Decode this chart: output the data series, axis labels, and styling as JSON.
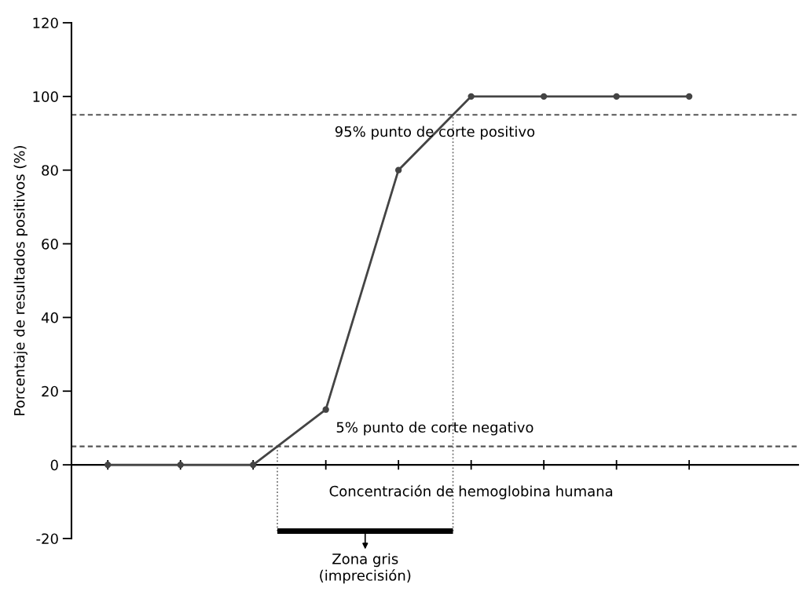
{
  "chart_data": {
    "type": "line",
    "ylabel": "Porcentaje de resultados positivos (%)",
    "xlabel": "Concentración de hemoglobina humana",
    "categories": [
      null,
      null,
      null,
      null,
      null,
      null,
      null,
      null,
      null
    ],
    "series": [
      {
        "color": "#444444",
        "values": [
          0,
          0,
          0,
          15,
          80,
          100,
          100,
          100,
          100
        ]
      }
    ],
    "marker": "circle",
    "line_style": "solid",
    "ylim": [
      -20,
      120
    ],
    "yticks": [
      -20,
      0,
      20,
      40,
      60,
      80,
      100,
      120
    ],
    "tick_labels": "y",
    "legend": false,
    "ref_lines": [
      {
        "axis": "y",
        "value": 95,
        "label": "95% punto de corte positivo",
        "color": "#555555",
        "line_style": "dashed"
      },
      {
        "axis": "y",
        "value": 5,
        "label": "5% punto de corte negativo",
        "color": "#555555",
        "line_style": "dashed"
      }
    ],
    "annotations": [
      "Zona gris\n(imprecisión)"
    ]
  }
}
